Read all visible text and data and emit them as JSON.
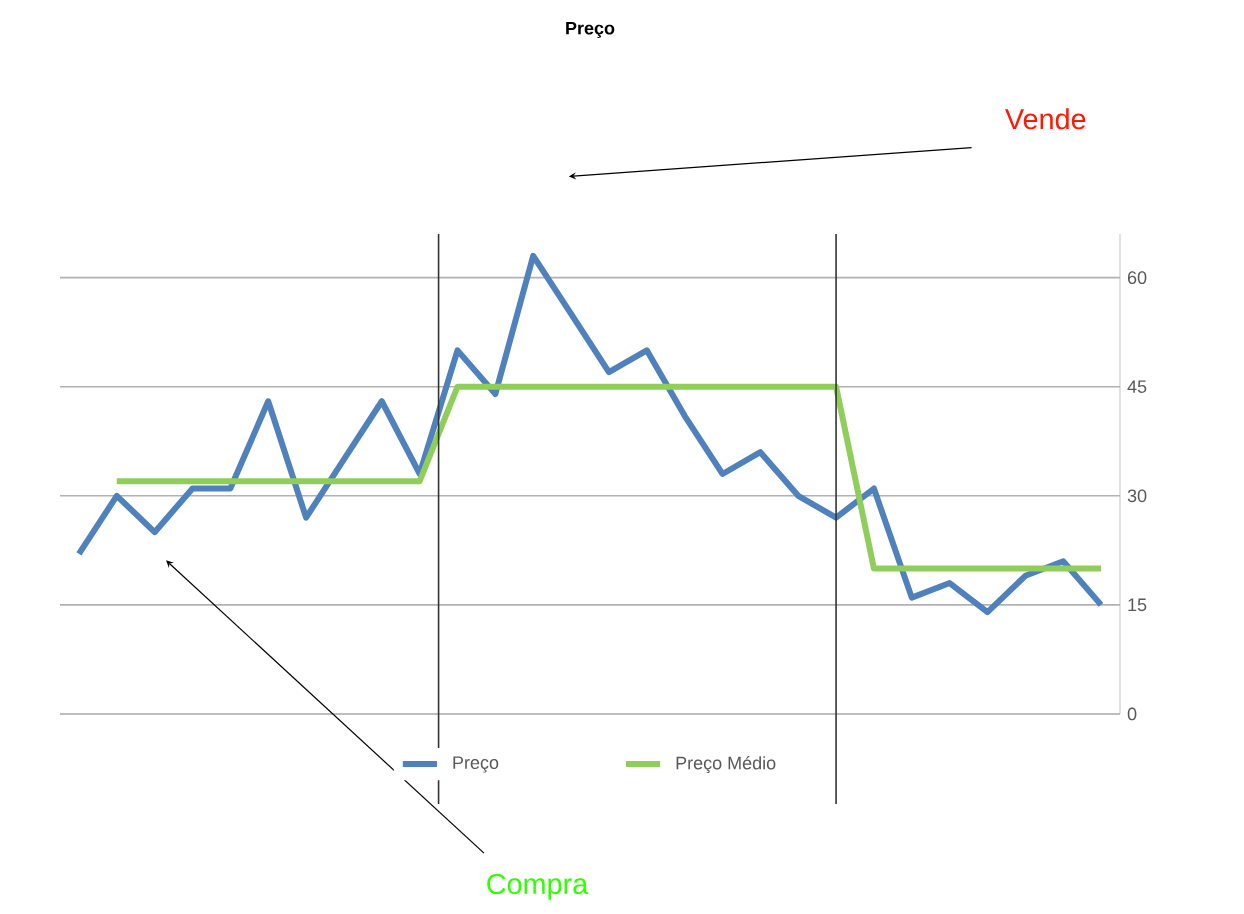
{
  "chart_data": {
    "type": "line",
    "title": "Preço",
    "categories": [
      null,
      null,
      null,
      null,
      null,
      null,
      null,
      null,
      null,
      null,
      null,
      null,
      null,
      null,
      null,
      null,
      null,
      null,
      null,
      null,
      null,
      null,
      null,
      null,
      null,
      null,
      null,
      null
    ],
    "series": [
      {
        "name": "Preço",
        "color": "#4f81bd",
        "values": [
          22,
          30,
          25,
          31,
          31,
          43,
          27,
          35,
          43,
          33,
          50,
          44,
          63,
          55,
          47,
          50,
          41,
          33,
          36,
          30,
          27,
          31,
          16,
          18,
          14,
          19,
          21,
          15
        ]
      },
      {
        "name": "Preço Médio",
        "color": "#8fce5a",
        "values": [
          null,
          32,
          32,
          32,
          32,
          32,
          32,
          32,
          32,
          32,
          45,
          45,
          45,
          45,
          45,
          45,
          45,
          45,
          45,
          45,
          45,
          20,
          20,
          20,
          20,
          20,
          20,
          20
        ]
      }
    ],
    "ylim": [
      0,
      66
    ],
    "yticks": [
      0,
      15,
      30,
      45,
      60
    ],
    "grid": "y",
    "legend": "bottom",
    "marker": "none",
    "line_style": "solid",
    "annotations": [
      "Vende",
      "Compra"
    ]
  }
}
